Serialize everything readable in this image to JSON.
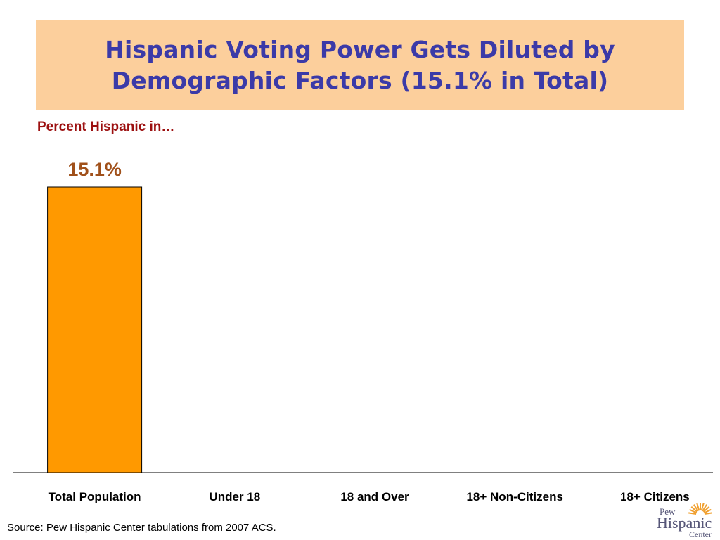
{
  "title": {
    "line1": "Hispanic Voting Power Gets Diluted by",
    "line2": "Demographic Factors (15.1% in Total)"
  },
  "subtitle": "Percent Hispanic in…",
  "source": "Source:  Pew Hispanic Center tabulations from 2007 ACS.",
  "logo": {
    "word1": "Pew",
    "word2": "Hispanic",
    "word3": "Center",
    "icon": "sunburst-icon"
  },
  "colors": {
    "title_bg": "#fccf9c",
    "title_text": "#3b3aa8",
    "subtitle_text": "#9c1010",
    "bar_fill": "#ff9900",
    "value_label": "#a0501a",
    "logo_rays": "#f0a030",
    "logo_text": "#555577"
  },
  "chart_data": {
    "type": "bar",
    "categories": [
      "Total Population",
      "Under 18",
      "18 and Over",
      "18+ Non-Citizens",
      "18+ Citizens"
    ],
    "values": [
      15.1,
      null,
      null,
      null,
      null
    ],
    "data_labels": [
      "15.1%",
      "",
      "",
      "",
      ""
    ],
    "ylim": [
      0,
      15.1
    ],
    "grid": false,
    "legend": "none"
  }
}
